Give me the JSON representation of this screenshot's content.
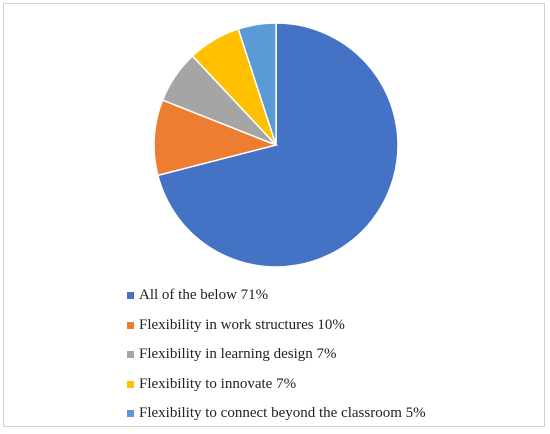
{
  "chart_data": {
    "type": "pie",
    "slices": [
      {
        "label": "All of the below 71%",
        "value": 71,
        "color": "#4472C4"
      },
      {
        "label": "Flexibility in work structures 10%",
        "value": 10,
        "color": "#ED7D31"
      },
      {
        "label": "Flexibility in learning design 7%",
        "value": 7,
        "color": "#A5A5A5"
      },
      {
        "label": "Flexibility to innovate 7%",
        "value": 7,
        "color": "#FFC000"
      },
      {
        "label": "Flexibility to connect beyond the classroom 5%",
        "value": 5,
        "color": "#5B9BD5"
      }
    ],
    "legend_position": "bottom-left"
  }
}
